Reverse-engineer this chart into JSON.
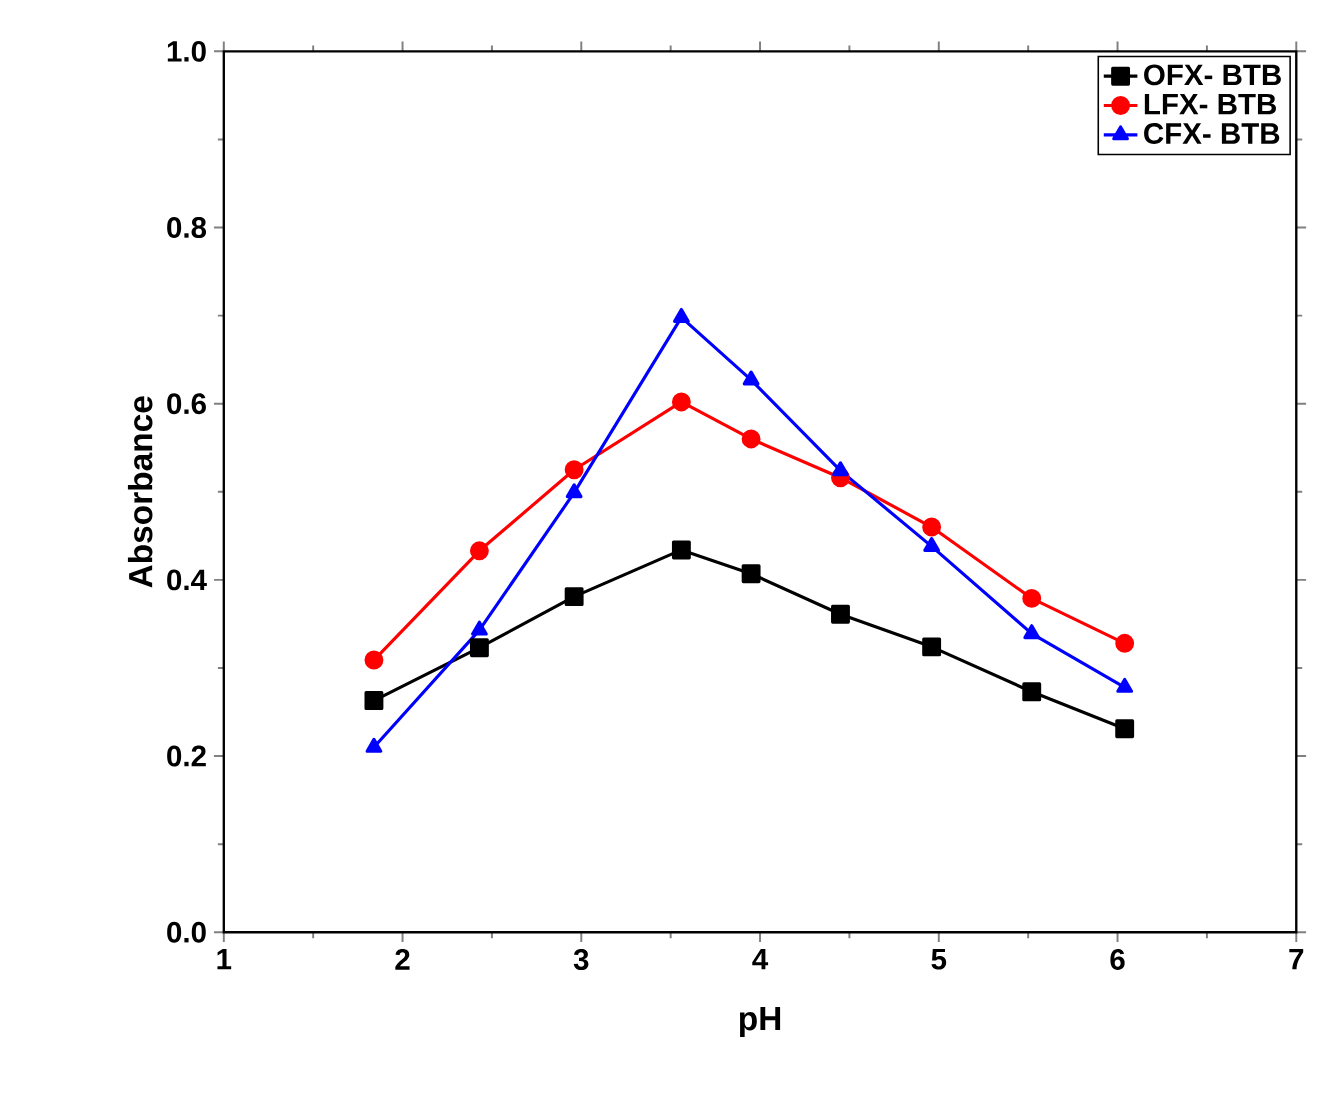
{
  "chart_data": {
    "type": "line",
    "xlabel": "pH",
    "ylabel": "Absorbance",
    "x": [
      1.84,
      2.43,
      2.96,
      3.56,
      3.95,
      4.45,
      4.96,
      5.52,
      6.04
    ],
    "series": [
      {
        "name": "OFX- BTB",
        "color": "#000000",
        "marker": "square",
        "values": [
          0.263,
          0.323,
          0.381,
          0.434,
          0.407,
          0.361,
          0.324,
          0.273,
          0.231
        ]
      },
      {
        "name": "LFX- BTB",
        "color": "#ff0000",
        "marker": "circle",
        "values": [
          0.309,
          0.433,
          0.525,
          0.602,
          0.56,
          0.516,
          0.46,
          0.379,
          0.328
        ]
      },
      {
        "name": "CFX- BTB",
        "color": "#0000ff",
        "marker": "triangle",
        "values": [
          0.21,
          0.343,
          0.499,
          0.698,
          0.627,
          0.524,
          0.438,
          0.339,
          0.278
        ]
      }
    ],
    "xlim": [
      1,
      7
    ],
    "ylim": [
      0,
      1
    ],
    "xticks": [
      1,
      2,
      3,
      4,
      5,
      6,
      7
    ],
    "yticks": [
      {
        "value": 0,
        "label": "0.0"
      },
      {
        "value": 0.2,
        "label": "0.2"
      },
      {
        "value": 0.4,
        "label": "0.4"
      },
      {
        "value": 0.6,
        "label": "0.6"
      },
      {
        "value": 0.8,
        "label": "0.8"
      },
      {
        "value": 1,
        "label": "1.0"
      }
    ],
    "line_style": "solid",
    "legend": "top right"
  }
}
